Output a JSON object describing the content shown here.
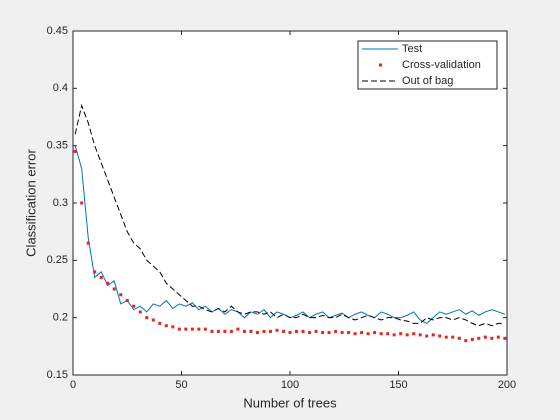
{
  "chart_data": {
    "type": "line",
    "xlabel": "Number of trees",
    "ylabel": "Classification error",
    "xlim": [
      0,
      200
    ],
    "xticks": [
      0,
      50,
      100,
      150,
      200
    ],
    "ylim": [
      0.15,
      0.45
    ],
    "yticks": [
      0.15,
      0.2,
      0.25,
      0.3,
      0.35,
      0.4,
      0.45
    ],
    "legend": "upper right",
    "x": [
      1,
      4,
      7,
      10,
      13,
      16,
      19,
      22,
      25,
      28,
      31,
      34,
      37,
      40,
      43,
      46,
      49,
      52,
      55,
      58,
      61,
      64,
      67,
      70,
      73,
      76,
      79,
      82,
      85,
      88,
      91,
      94,
      97,
      100,
      103,
      106,
      109,
      112,
      115,
      118,
      121,
      124,
      127,
      130,
      133,
      136,
      139,
      142,
      145,
      148,
      151,
      154,
      157,
      160,
      163,
      166,
      169,
      172,
      175,
      178,
      181,
      184,
      187,
      190,
      193,
      196,
      199
    ],
    "series": [
      {
        "name": "Test",
        "color": "#0072bd",
        "style": "solid",
        "values": [
          0.35,
          0.33,
          0.27,
          0.235,
          0.24,
          0.228,
          0.232,
          0.212,
          0.215,
          0.207,
          0.21,
          0.205,
          0.212,
          0.21,
          0.215,
          0.208,
          0.212,
          0.21,
          0.213,
          0.207,
          0.21,
          0.205,
          0.208,
          0.203,
          0.207,
          0.205,
          0.2,
          0.205,
          0.203,
          0.207,
          0.2,
          0.205,
          0.203,
          0.2,
          0.202,
          0.205,
          0.2,
          0.203,
          0.205,
          0.2,
          0.202,
          0.204,
          0.2,
          0.203,
          0.205,
          0.202,
          0.2,
          0.205,
          0.203,
          0.2,
          0.2,
          0.202,
          0.205,
          0.198,
          0.195,
          0.2,
          0.205,
          0.203,
          0.205,
          0.207,
          0.203,
          0.206,
          0.202,
          0.205,
          0.207,
          0.205,
          0.203
        ]
      },
      {
        "name": "Cross-validation",
        "color": "#e8231f",
        "style": "dots",
        "values": [
          0.345,
          0.3,
          0.265,
          0.24,
          0.235,
          0.23,
          0.225,
          0.22,
          0.215,
          0.21,
          0.205,
          0.2,
          0.198,
          0.195,
          0.193,
          0.192,
          0.19,
          0.19,
          0.19,
          0.19,
          0.19,
          0.188,
          0.188,
          0.188,
          0.188,
          0.19,
          0.188,
          0.188,
          0.187,
          0.188,
          0.188,
          0.189,
          0.188,
          0.187,
          0.188,
          0.188,
          0.187,
          0.188,
          0.187,
          0.187,
          0.188,
          0.187,
          0.187,
          0.186,
          0.187,
          0.186,
          0.187,
          0.186,
          0.186,
          0.185,
          0.186,
          0.185,
          0.186,
          0.185,
          0.184,
          0.185,
          0.184,
          0.183,
          0.183,
          0.182,
          0.18,
          0.181,
          0.182,
          0.183,
          0.182,
          0.183,
          0.182
        ]
      },
      {
        "name": "Out of bag",
        "color": "#000000",
        "style": "dashed",
        "values": [
          0.36,
          0.385,
          0.37,
          0.35,
          0.335,
          0.32,
          0.305,
          0.29,
          0.275,
          0.265,
          0.26,
          0.25,
          0.245,
          0.24,
          0.23,
          0.225,
          0.22,
          0.215,
          0.21,
          0.21,
          0.207,
          0.205,
          0.208,
          0.205,
          0.21,
          0.205,
          0.203,
          0.205,
          0.205,
          0.203,
          0.205,
          0.2,
          0.203,
          0.2,
          0.2,
          0.203,
          0.2,
          0.2,
          0.202,
          0.2,
          0.2,
          0.203,
          0.2,
          0.198,
          0.2,
          0.202,
          0.2,
          0.198,
          0.2,
          0.2,
          0.198,
          0.197,
          0.195,
          0.195,
          0.2,
          0.198,
          0.2,
          0.2,
          0.198,
          0.2,
          0.198,
          0.195,
          0.193,
          0.195,
          0.193,
          0.195,
          0.195
        ]
      }
    ]
  }
}
